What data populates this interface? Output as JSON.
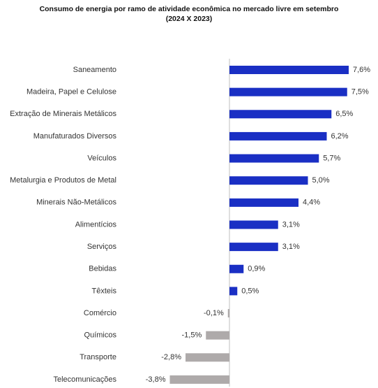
{
  "chart_data": {
    "type": "hbar",
    "title": "Consumo de energia por ramo de atividade econômica no mercado livre em setembro",
    "subtitle": "(2024 X 2023)",
    "categories": [
      "Saneamento",
      "Madeira, Papel e Celulose",
      "Extração de Minerais Metálicos",
      "Manufaturados Diversos",
      "Veículos",
      "Metalurgia e Produtos de Metal",
      "Minerais Não-Metálicos",
      "Alimentícios",
      "Serviços",
      "Bebidas",
      "Têxteis",
      "Comércio",
      "Químicos",
      "Transporte",
      "Telecomunicações"
    ],
    "values": [
      7.6,
      7.5,
      6.5,
      6.2,
      5.7,
      5.0,
      4.4,
      3.1,
      3.1,
      0.9,
      0.5,
      -0.1,
      -1.5,
      -2.8,
      -3.8
    ],
    "value_labels": [
      "7,6%",
      "7,5%",
      "6,5%",
      "6,2%",
      "5,7%",
      "5,0%",
      "4,4%",
      "3,1%",
      "3,1%",
      "0,9%",
      "0,5%",
      "-0,1%",
      "-1,5%",
      "-2,8%",
      "-3,8%"
    ],
    "positive_color": "#1a2fc4",
    "negative_color": "#aeaaaa"
  }
}
